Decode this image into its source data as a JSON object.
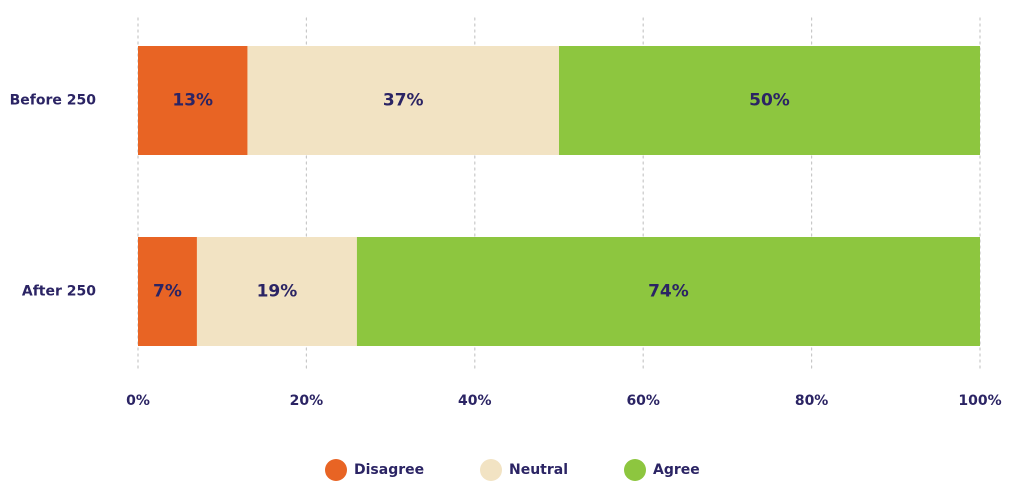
{
  "chart_data": {
    "type": "bar",
    "orientation": "horizontal",
    "stacked": true,
    "categories": [
      "Before 250",
      "After 250"
    ],
    "series": [
      {
        "name": "Disagree",
        "values": [
          13,
          7
        ],
        "labels": [
          "13%",
          "7%"
        ],
        "color": "#E86424"
      },
      {
        "name": "Neutral",
        "values": [
          37,
          19
        ],
        "labels": [
          "37%",
          "19%"
        ],
        "color": "#F2E3C3"
      },
      {
        "name": "Agree",
        "values": [
          50,
          74
        ],
        "labels": [
          "50%",
          "74%"
        ],
        "color": "#8DC63F"
      }
    ],
    "xlim": [
      0,
      100
    ],
    "x_ticks": [
      0,
      20,
      40,
      60,
      80,
      100
    ],
    "x_tick_labels": [
      "0%",
      "20%",
      "40%",
      "60%",
      "80%",
      "100%"
    ],
    "grid": "vertical-dotted",
    "legend_position": "bottom-center",
    "text_color": "#2B2464",
    "grid_color": "#C8C8C8"
  }
}
